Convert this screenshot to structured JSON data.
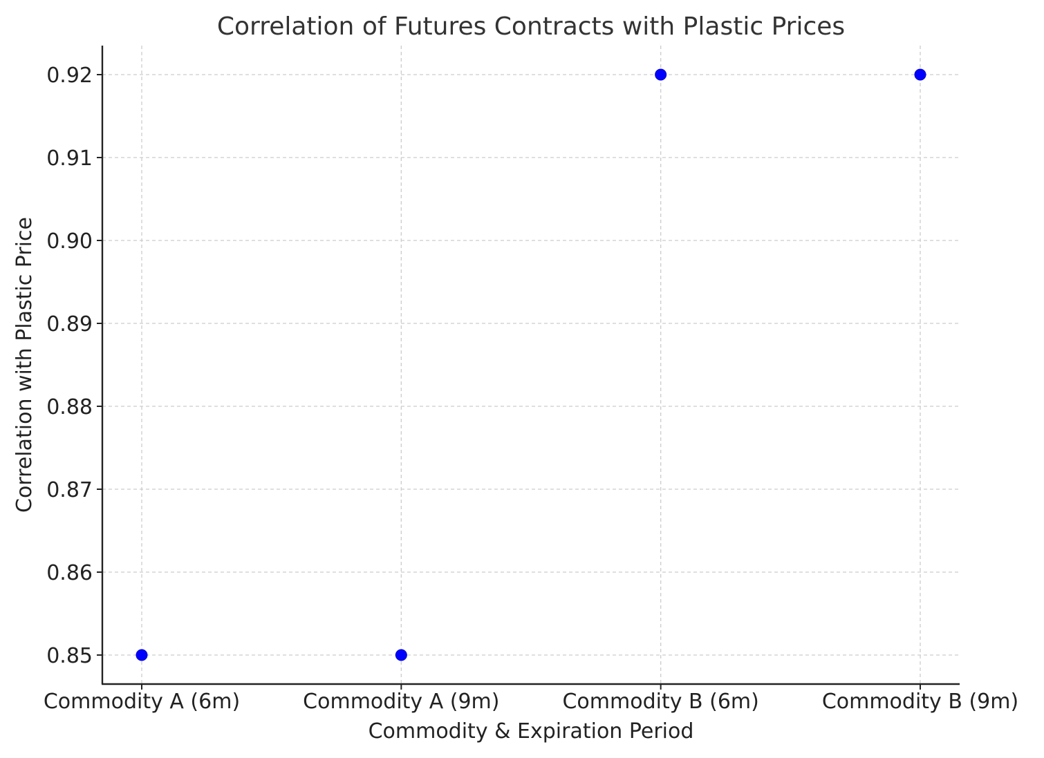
{
  "chart_data": {
    "type": "scatter",
    "title": "Correlation of Futures Contracts with Plastic Prices",
    "xlabel": "Commodity & Expiration Period",
    "ylabel": "Correlation with Plastic Price",
    "categories": [
      "Commodity A (6m)",
      "Commodity A (9m)",
      "Commodity B (6m)",
      "Commodity B (9m)"
    ],
    "values": [
      0.85,
      0.85,
      0.92,
      0.92
    ],
    "yticks": [
      "0.85",
      "0.86",
      "0.87",
      "0.88",
      "0.89",
      "0.90",
      "0.91",
      "0.92"
    ],
    "ylim": [
      0.8465,
      0.9235
    ],
    "grid": true,
    "point_color": "#0000ff"
  }
}
